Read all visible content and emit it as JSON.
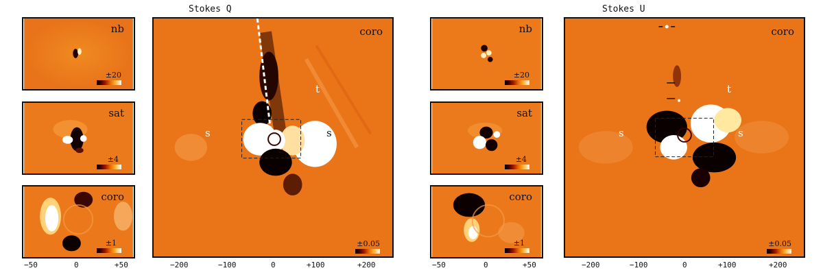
{
  "figure": {
    "stokes_q_title": "Stokes Q",
    "stokes_u_title": "Stokes U",
    "small_panels": {
      "nb_label": "nb",
      "sat_label": "sat",
      "coro_label": "coro",
      "nb_scale": "±20",
      "sat_scale": "±4",
      "coro_scale": "±1"
    },
    "large_panels": {
      "coro_label": "coro",
      "scale": "±0.05",
      "s_label": "s",
      "t_label": "t"
    },
    "small_axis_ticks": [
      "−50",
      "0",
      "+50"
    ],
    "large_axis_ticks": [
      "−200",
      "−100",
      "0",
      "+100",
      "+200"
    ]
  }
}
